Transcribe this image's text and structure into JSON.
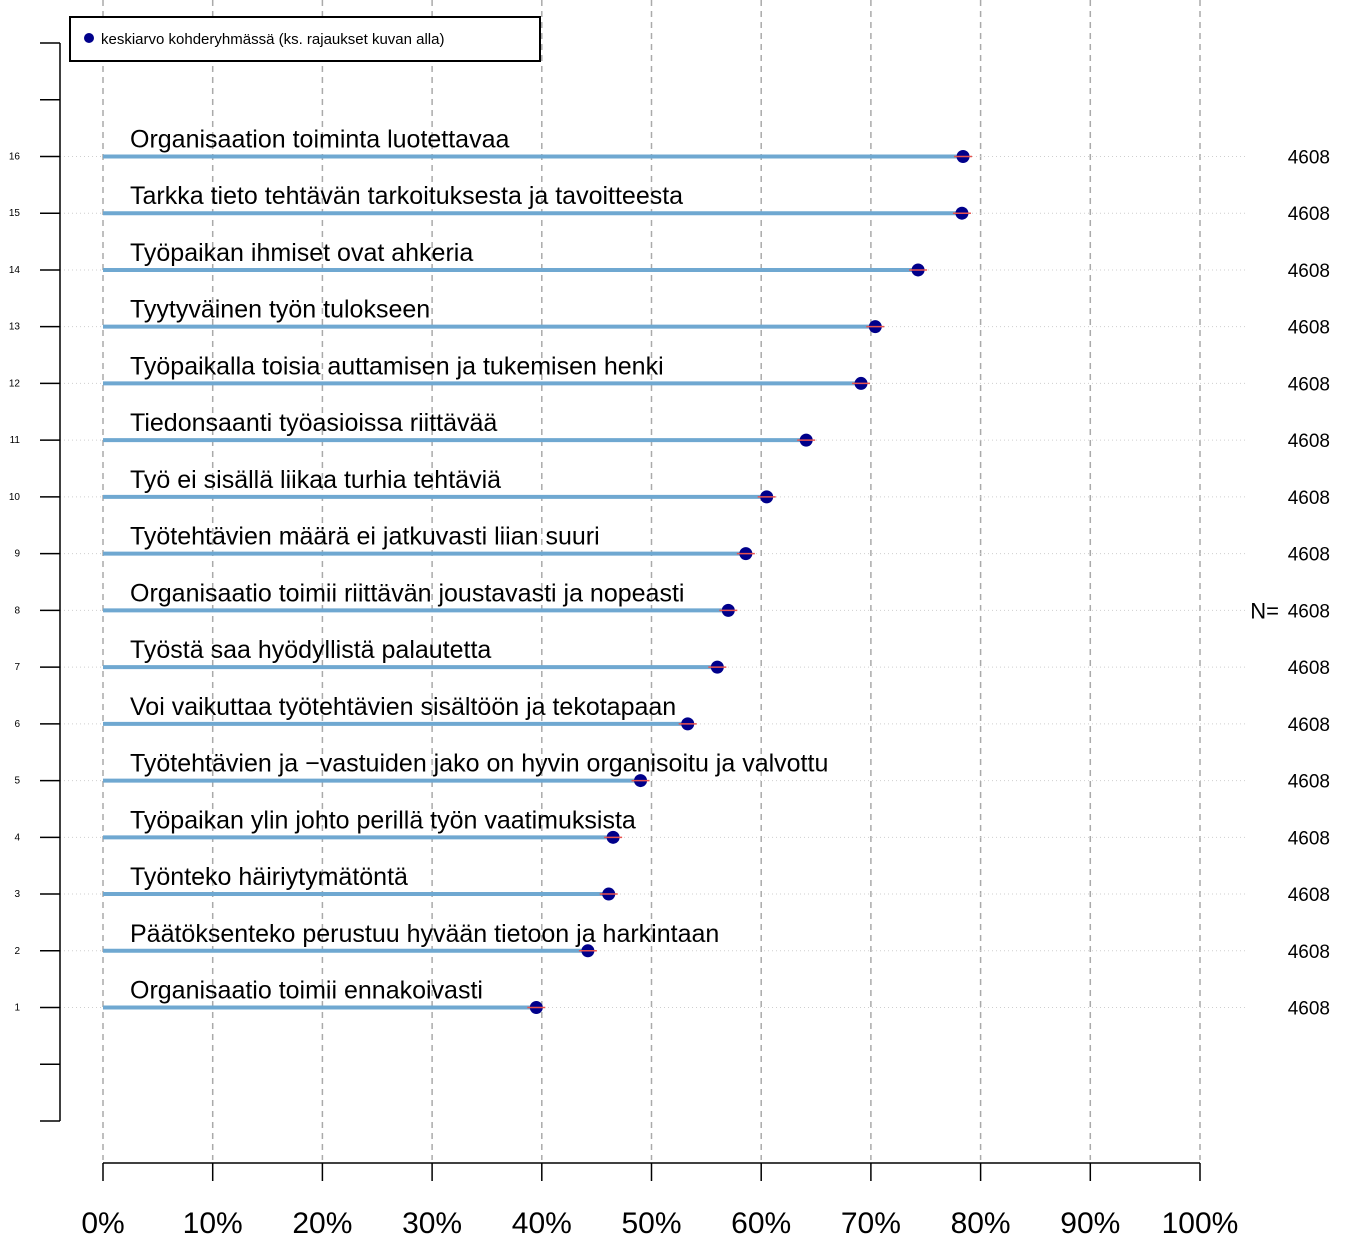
{
  "chart_data": {
    "type": "lollipop",
    "orientation": "horizontal",
    "xlim": [
      0,
      100
    ],
    "ylim": [
      -1,
      18
    ],
    "x_ticks": [
      0,
      10,
      20,
      30,
      40,
      50,
      60,
      70,
      80,
      90,
      100
    ],
    "x_tick_labels": [
      "0%",
      "10%",
      "20%",
      "30%",
      "40%",
      "50%",
      "60%",
      "70%",
      "80%",
      "90%",
      "100%"
    ],
    "y_ticks": [
      1,
      2,
      3,
      4,
      5,
      6,
      7,
      8,
      9,
      10,
      11,
      12,
      13,
      14,
      15,
      16
    ],
    "grid": "vertical dashed",
    "legend": {
      "placement": "top-left",
      "entries": [
        {
          "label": "keskiarvo kohderyhmässä (ks. rajaukset kuvan alla)",
          "marker_color": "#00008b"
        }
      ]
    },
    "n_prefix": "N=",
    "colors": {
      "segment": "#6fa8d1",
      "marker": "#00008b",
      "error": "#e8534f",
      "grid": "#aaaaaa",
      "n_prefix": "#006400"
    },
    "items": [
      {
        "index": 16,
        "label": "Organisaation toiminta luotettavaa",
        "value": 78.4,
        "n": "4608"
      },
      {
        "index": 15,
        "label": "Tarkka tieto tehtävän tarkoituksesta ja tavoitteesta",
        "value": 78.3,
        "n": "4608"
      },
      {
        "index": 14,
        "label": "Työpaikan ihmiset ovat ahkeria",
        "value": 74.3,
        "n": "4608"
      },
      {
        "index": 13,
        "label": "Tyytyväinen työn tulokseen",
        "value": 70.4,
        "n": "4608"
      },
      {
        "index": 12,
        "label": "Työpaikalla toisia auttamisen ja tukemisen henki",
        "value": 69.1,
        "n": "4608"
      },
      {
        "index": 11,
        "label": "Tiedonsaanti työasioissa riittävää",
        "value": 64.1,
        "n": "4608"
      },
      {
        "index": 10,
        "label": "Työ ei sisällä liikaa turhia tehtäviä",
        "value": 60.5,
        "n": "4608"
      },
      {
        "index": 9,
        "label": "Työtehtävien määrä ei jatkuvasti liian suuri",
        "value": 58.6,
        "n": "4608"
      },
      {
        "index": 8,
        "label": "Organisaatio toimii riittävän joustavasti ja nopeasti",
        "value": 57.0,
        "n": "4608"
      },
      {
        "index": 7,
        "label": "Työstä saa hyödyllistä palautetta",
        "value": 56.0,
        "n": "4608"
      },
      {
        "index": 6,
        "label": "Voi vaikuttaa työtehtävien sisältöön ja tekotapaan",
        "value": 53.3,
        "n": "4608"
      },
      {
        "index": 5,
        "label": "Työtehtävien ja −vastuiden jako on hyvin organisoitu ja valvottu",
        "value": 49.0,
        "n": "4608"
      },
      {
        "index": 4,
        "label": "Työpaikan ylin johto perillä työn vaatimuksista",
        "value": 46.5,
        "n": "4608"
      },
      {
        "index": 3,
        "label": "Työnteko häiriytymätöntä",
        "value": 46.1,
        "n": "4608"
      },
      {
        "index": 2,
        "label": "Päätöksenteko perustuu hyvään tietoon ja harkintaan",
        "value": 44.2,
        "n": "4608"
      },
      {
        "index": 1,
        "label": "Organisaatio toimii ennakoivasti",
        "value": 39.5,
        "n": "4608"
      }
    ]
  }
}
